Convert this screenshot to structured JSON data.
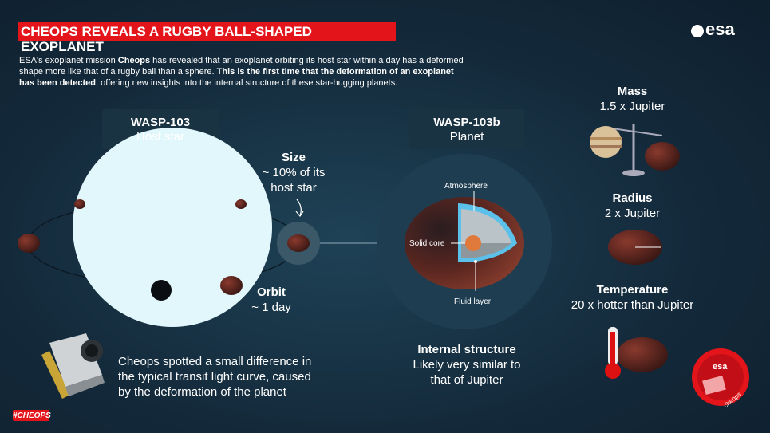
{
  "header": {
    "title": "CHEOPS REVEALS A RUGBY BALL-SHAPED EXOPLANET",
    "logo": "esa"
  },
  "intro": {
    "part1": "ESA's exoplanet mission ",
    "mission": "Cheops",
    "part2": " has revealed that an exoplanet orbiting its host star within a day has a deformed shape more like that of a rugby ball than a sphere. ",
    "highlight": "This is the first time that the deformation of an exoplanet has been detected",
    "part3": ", offering new insights into the internal structure of these star-hugging planets."
  },
  "star": {
    "name": "WASP-103",
    "label": "Host star"
  },
  "size": {
    "title": "Size",
    "text": "~ 10% of its host star"
  },
  "orbit": {
    "title": "Orbit",
    "text": "~ 1 day"
  },
  "planet": {
    "name": "WASP-103b",
    "label": "Planet",
    "layers": {
      "atmosphere": "Atmosphere",
      "core": "Solid core",
      "fluid": "Fluid layer"
    }
  },
  "structure": {
    "title": "Internal structure",
    "text": "Likely very similar to that of Jupiter"
  },
  "facts": [
    {
      "title": "Mass",
      "text": "1.5 x Jupiter"
    },
    {
      "title": "Radius",
      "text": "2 x Jupiter"
    },
    {
      "title": "Temperature",
      "text": "20 x hotter than Jupiter"
    }
  ],
  "note": "Cheops spotted a small difference in the typical transit light curve, caused by the deformation of the planet",
  "hashtag": "#CHEOPS",
  "badge": {
    "logo": "esa",
    "mission": "cheops"
  }
}
